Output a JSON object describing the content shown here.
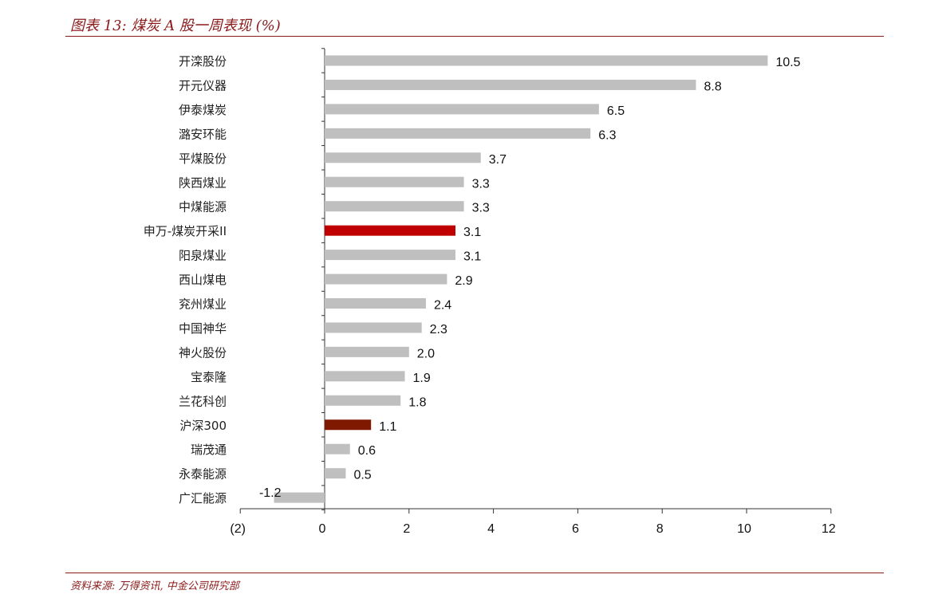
{
  "header": {
    "title": "图表 13: 煤炭 A 股一周表现 (%)"
  },
  "footer": {
    "source": "资料来源: 万得资讯, 中金公司研究部"
  },
  "colors": {
    "default_bar": "#bfbfbf",
    "highlight_index": "#c00000",
    "highlight_benchmark": "#7f1a00",
    "negative_tick_label": "#c00000",
    "accent_rule": "#8b1a1a"
  },
  "chart_data": {
    "type": "bar",
    "orientation": "horizontal",
    "title": "煤炭 A 股一周表现 (%)",
    "xlim": [
      -2,
      12
    ],
    "x_ticks": [
      -2,
      0,
      2,
      4,
      6,
      8,
      10,
      12
    ],
    "x_tick_labels": [
      "(2)",
      "0",
      "2",
      "4",
      "6",
      "8",
      "10",
      "12"
    ],
    "categories": [
      "开滦股份",
      "开元仪器",
      "伊泰煤炭",
      "潞安环能",
      "平煤股份",
      "陕西煤业",
      "中煤能源",
      "申万-煤炭开采II",
      "阳泉煤业",
      "西山煤电",
      "兖州煤业",
      "中国神华",
      "神火股份",
      "宝泰隆",
      "兰花科创",
      "沪深300",
      "瑞茂通",
      "永泰能源",
      "广汇能源"
    ],
    "values": [
      10.5,
      8.8,
      6.5,
      6.3,
      3.7,
      3.3,
      3.3,
      3.1,
      3.1,
      2.9,
      2.4,
      2.3,
      2.0,
      1.9,
      1.8,
      1.1,
      0.6,
      0.5,
      -1.2
    ],
    "value_labels": [
      "10.5",
      "8.8",
      "6.5",
      "6.3",
      "3.7",
      "3.3",
      "3.3",
      "3.1",
      "3.1",
      "2.9",
      "2.4",
      "2.3",
      "2.0",
      "1.9",
      "1.8",
      "1.1",
      "0.6",
      "0.5",
      "-1.2"
    ],
    "highlight": {
      "申万-煤炭开采II": "highlight_index",
      "沪深300": "highlight_benchmark"
    },
    "grid": false,
    "legend": "none"
  }
}
